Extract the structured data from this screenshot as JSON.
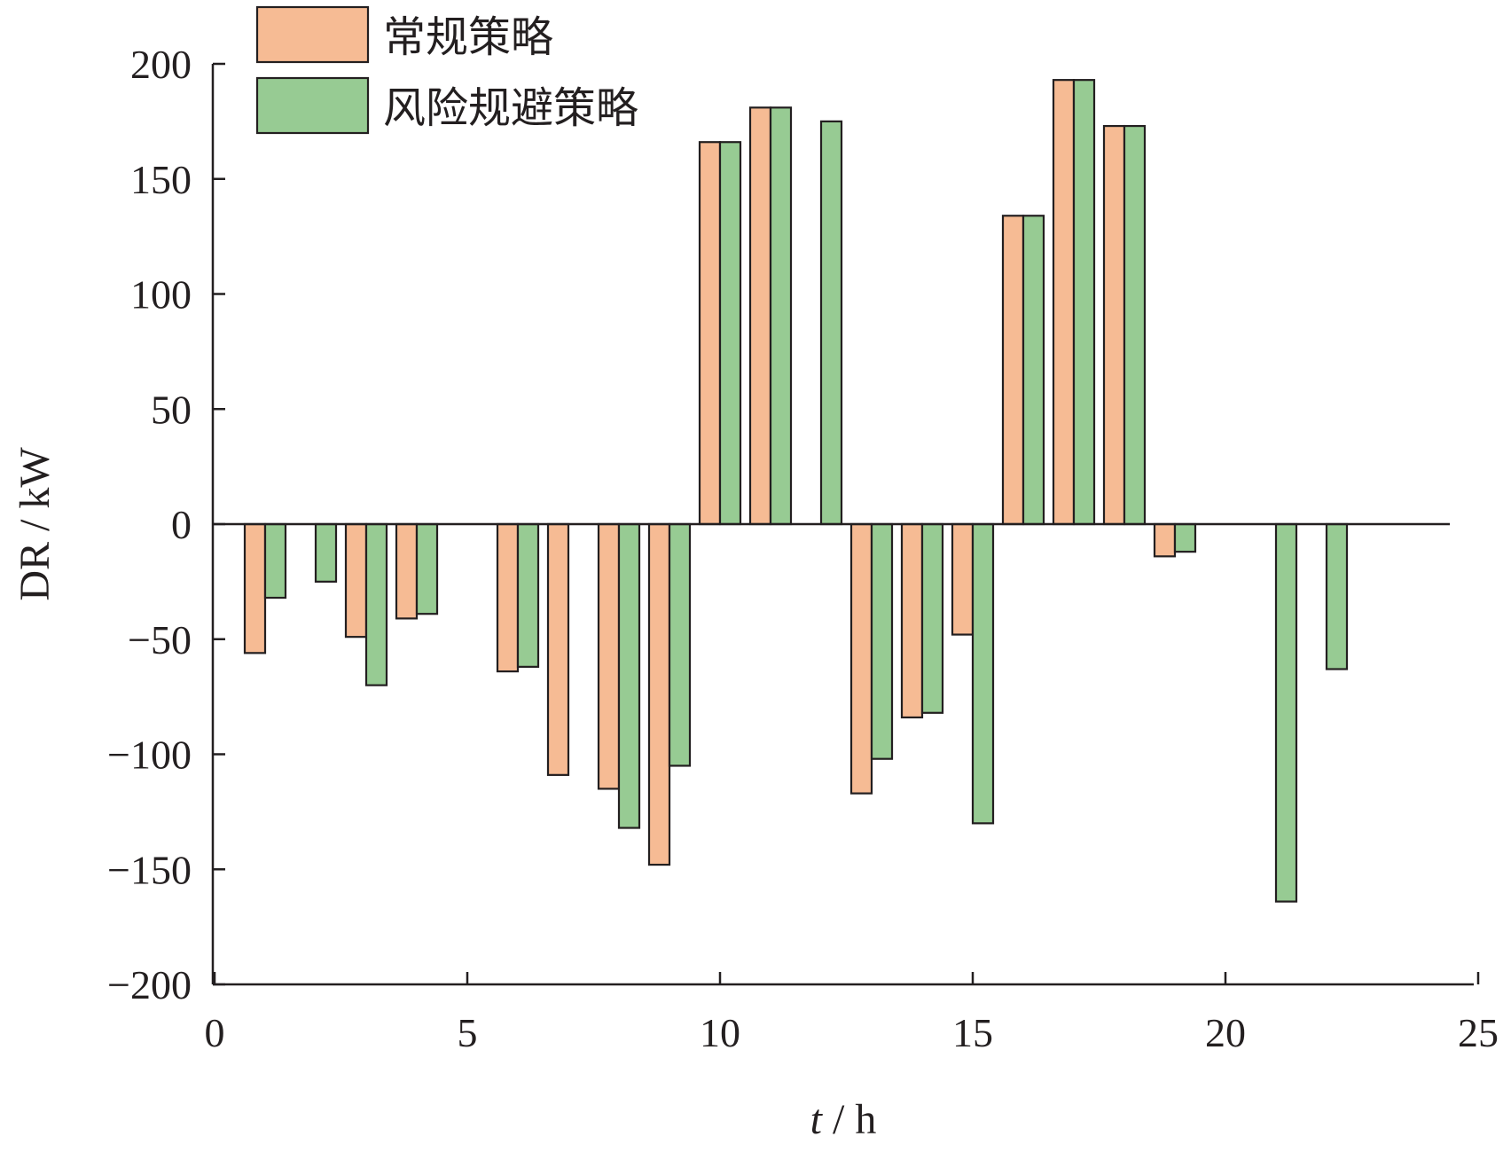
{
  "chart_data": {
    "type": "bar",
    "xlabel_italic": "t",
    "xlabel_rest": " / h",
    "ylabel": "DR / kW",
    "xlim": [
      0,
      25
    ],
    "ylim": [
      -200,
      200
    ],
    "xticks": [
      0,
      5,
      10,
      15,
      20,
      25
    ],
    "yticks": [
      200,
      150,
      100,
      50,
      0,
      -50,
      -100,
      -150,
      -200
    ],
    "x": [
      1,
      2,
      3,
      4,
      5,
      6,
      7,
      8,
      9,
      10,
      11,
      12,
      13,
      14,
      15,
      16,
      17,
      18,
      19,
      20,
      21,
      22
    ],
    "series": [
      {
        "name": "常规策略",
        "color": "#f6bb94",
        "values": [
          -56,
          0,
          -49,
          -41,
          0,
          -64,
          -109,
          -115,
          -148,
          166,
          181,
          0,
          -117,
          -84,
          -48,
          134,
          193,
          173,
          -14,
          0,
          0,
          0
        ]
      },
      {
        "name": "风险规避策略",
        "color": "#97cb93",
        "values": [
          -32,
          -25,
          -70,
          -39,
          0,
          -62,
          0,
          -132,
          -105,
          166,
          181,
          175,
          -102,
          -82,
          -130,
          134,
          193,
          173,
          -12,
          0,
          -164,
          -63
        ]
      }
    ],
    "legend_position": "top-left",
    "grid": false
  }
}
